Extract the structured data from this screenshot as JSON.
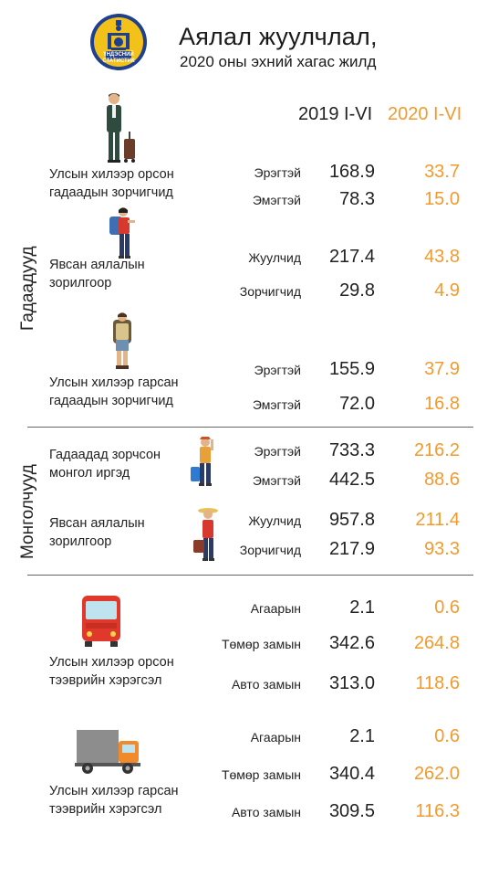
{
  "header": {
    "logo_text_top": "ҮНДЭСНИЙ",
    "logo_text_bottom": "СТАТИСТИК",
    "title": "Аялал жуулчлал,",
    "subtitle": "2020 оны эхний хагас жилд",
    "col_2019": "2019 I-VI",
    "col_2020": "2020 I-VI"
  },
  "side_labels": {
    "foreigners": "Гадаадууд",
    "mongolians": "Монголчууд"
  },
  "sections": {
    "foreign_in": {
      "label_line1": "Улсын хилээр орсон",
      "label_line2": "гадаадын зорчигчид",
      "rows": [
        {
          "label": "Эрэгтэй",
          "v2019": "168.9",
          "v2020": "33.7"
        },
        {
          "label": "Эмэгтэй",
          "v2019": "78.3",
          "v2020": "15.0"
        }
      ]
    },
    "foreign_purpose": {
      "label_line1": "Явсан аялалын",
      "label_line2": "зорилгоор",
      "rows": [
        {
          "label": "Жуулчид",
          "v2019": "217.4",
          "v2020": "43.8"
        },
        {
          "label": "Зорчигчид",
          "v2019": "29.8",
          "v2020": "4.9"
        }
      ]
    },
    "foreign_out": {
      "label_line1": "Улсын хилээр гарсан",
      "label_line2": "гадаадын зорчигчид",
      "rows": [
        {
          "label": "Эрэгтэй",
          "v2019": "155.9",
          "v2020": "37.9"
        },
        {
          "label": "Эмэгтэй",
          "v2019": "72.0",
          "v2020": "16.8"
        }
      ]
    },
    "mongol_out": {
      "label_line1": "Гадаадад зорчсон",
      "label_line2": "монгол иргэд",
      "rows": [
        {
          "label": "Эрэгтэй",
          "v2019": "733.3",
          "v2020": "216.2"
        },
        {
          "label": "Эмэгтэй",
          "v2019": "442.5",
          "v2020": "88.6"
        }
      ]
    },
    "mongol_purpose": {
      "label_line1": "Явсан аялалын",
      "label_line2": "зорилгоор",
      "rows": [
        {
          "label": "Жуулчид",
          "v2019": "957.8",
          "v2020": "211.4"
        },
        {
          "label": "Зорчигчид",
          "v2019": "217.9",
          "v2020": "93.3"
        }
      ]
    },
    "vehicles_in": {
      "label_line1": "Улсын хилээр орсон",
      "label_line2": "тээврийн хэрэгсэл",
      "rows": [
        {
          "label": "Агаарын",
          "v2019": "2.1",
          "v2020": "0.6"
        },
        {
          "label": "Төмөр замын",
          "v2019": "342.6",
          "v2020": "264.8"
        },
        {
          "label": "Авто замын",
          "v2019": "313.0",
          "v2020": "118.6"
        }
      ]
    },
    "vehicles_out": {
      "label_line1": "Улсын хилээр гарсан",
      "label_line2": "тээврийн хэрэгсэл",
      "rows": [
        {
          "label": "Агаарын",
          "v2019": "2.1",
          "v2020": "0.6"
        },
        {
          "label": "Төмөр замын",
          "v2019": "340.4",
          "v2020": "262.0"
        },
        {
          "label": "Авто замын",
          "v2019": "309.5",
          "v2020": "116.3"
        }
      ]
    }
  },
  "colors": {
    "accent_orange": "#f39a2e",
    "logo_blue": "#1f3f8f",
    "logo_yellow": "#f2c21b"
  }
}
